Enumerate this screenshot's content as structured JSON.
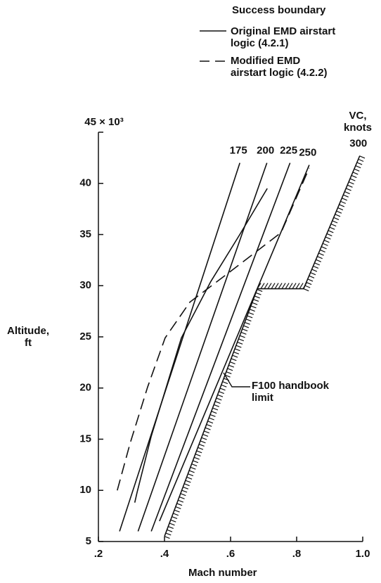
{
  "chart_data": {
    "type": "line",
    "legend_title": "Success boundary",
    "xlabel": "Mach number",
    "ylabel": "Altitude, ft",
    "vc_title": "VC, knots",
    "annotation": "F100 handbook limit",
    "xlim": [
      0.2,
      1.0
    ],
    "xticks": [
      {
        "value": 0.2,
        "label": ".2"
      },
      {
        "value": 0.4,
        "label": ".4"
      },
      {
        "value": 0.6,
        "label": ".6"
      },
      {
        "value": 0.8,
        "label": ".8"
      },
      {
        "value": 1.0,
        "label": "1.0"
      }
    ],
    "ylim": [
      5,
      45
    ],
    "yticks": [
      5,
      10,
      15,
      20,
      25,
      30,
      35,
      40,
      {
        "value": 45,
        "label": "45 × 10³"
      }
    ],
    "color": "#111111",
    "series": [
      {
        "name": "Original EMD airstart logic (4.2.1)",
        "style": "solid",
        "x": [
          0.31,
          0.317,
          0.36,
          0.451,
          0.54,
          0.626,
          0.711
        ],
        "values": [
          8.8,
          9.8,
          15.3,
          24.9,
          30.4,
          34.9,
          39.5
        ]
      },
      {
        "name": "Modified EMD airstart logic (4.2.2)",
        "style": "dashed",
        "x": [
          0.257,
          0.296,
          0.349,
          0.402,
          0.477,
          0.604,
          0.753,
          0.838
        ],
        "values": [
          10,
          14.6,
          20.1,
          24.9,
          28.4,
          31.5,
          35.2,
          41.5
        ]
      }
    ],
    "vc_lines": [
      {
        "name": "175",
        "style": "solid",
        "x": [
          0.264,
          0.628
        ],
        "values": [
          6,
          42
        ]
      },
      {
        "name": "200",
        "style": "solid",
        "x": [
          0.32,
          0.71
        ],
        "values": [
          6,
          42
        ]
      },
      {
        "name": "225",
        "style": "solid",
        "x": [
          0.36,
          0.78
        ],
        "values": [
          6,
          42
        ]
      },
      {
        "name": "250",
        "style": "solid",
        "x": [
          0.385,
          0.838
        ],
        "values": [
          7,
          41.8
        ]
      },
      {
        "name": "300",
        "style": "hatched",
        "x": [
          0.4,
          0.681,
          0.821,
          0.991
        ],
        "values": [
          5.5,
          29.7,
          29.7,
          42.7
        ]
      }
    ]
  }
}
